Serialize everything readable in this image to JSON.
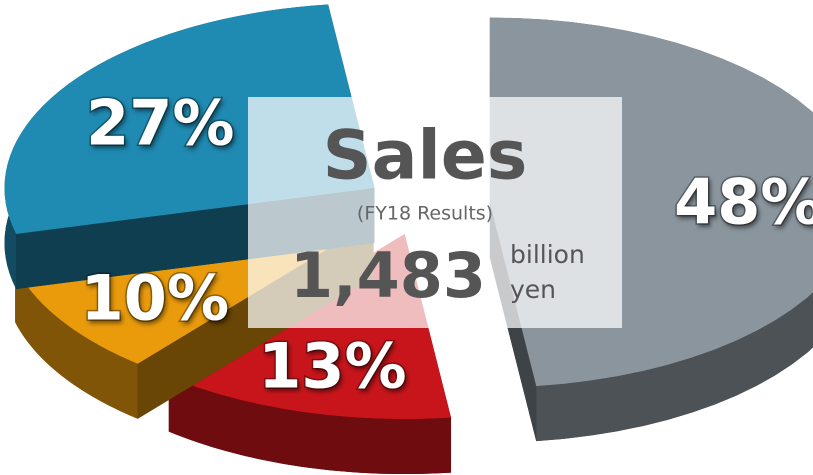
{
  "chart_data": {
    "type": "pie",
    "title": "Sales",
    "subtitle": "(FY18 Results)",
    "total": {
      "value": 1483,
      "label": "1,483"
    },
    "unit_lines": [
      "billion",
      "yen"
    ],
    "values": [
      48,
      13,
      10,
      27
    ],
    "value_labels": [
      "48%",
      "13%",
      "10%",
      "27%"
    ],
    "colors": [
      "#8a959d",
      "#c8151b",
      "#e99b0c",
      "#1f8ab2"
    ]
  }
}
